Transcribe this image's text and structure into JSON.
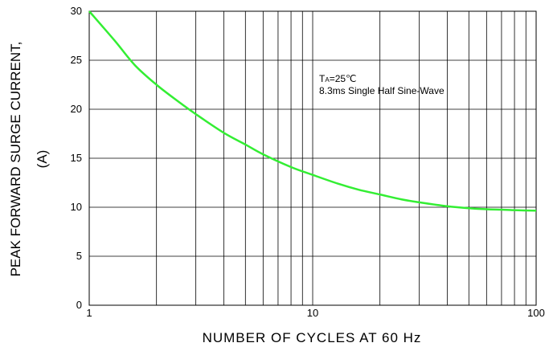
{
  "chart_data": {
    "type": "line",
    "xlabel": "NUMBER OF CYCLES AT 60 Hz",
    "ylabel_line1": "PEAK FORWARD SURGE CURRENT,",
    "ylabel_line2": "(A)",
    "xscale": "log",
    "xlim": [
      1,
      100
    ],
    "ylim": [
      0,
      30
    ],
    "x_tick_labels": [
      "1",
      "10",
      "100"
    ],
    "y_ticks": [
      0,
      5,
      10,
      15,
      20,
      25,
      30
    ],
    "grid": true,
    "annotation": {
      "sym": "T",
      "sub": "A",
      "rest": "=25℃",
      "line2": "8.3ms Single Half Sine-Wave"
    },
    "series": [
      {
        "color": "#33ee33",
        "x": [
          1,
          1.3,
          1.6,
          2,
          2.5,
          3,
          4,
          5,
          6,
          8,
          10,
          13,
          16,
          20,
          25,
          30,
          40,
          50,
          60,
          70,
          80,
          100
        ],
        "y": [
          30,
          27,
          24.5,
          22.5,
          20.8,
          19.5,
          17.6,
          16.4,
          15.4,
          14.1,
          13.3,
          12.4,
          11.8,
          11.3,
          10.8,
          10.5,
          10.1,
          9.9,
          9.8,
          9.75,
          9.7,
          9.65
        ]
      }
    ]
  }
}
